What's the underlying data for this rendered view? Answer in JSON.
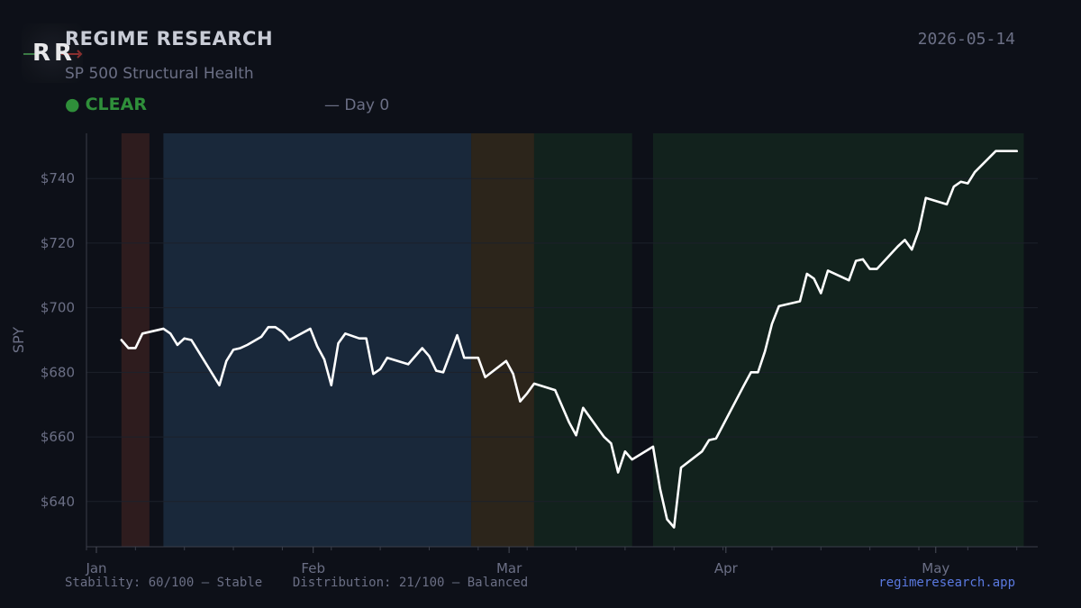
{
  "header": {
    "logo_text": "RR",
    "brand": "REGIME RESEARCH",
    "subtitle": "SP 500 Structural Health",
    "date": "2026-05-14",
    "status_icon": "●",
    "status_label": "CLEAR",
    "status_color": "#2f8f3a",
    "day_text": "— Day 0"
  },
  "footer": {
    "stability": "Stability: 60/100 — Stable",
    "distribution": "Distribution: 21/100 — Balanced",
    "site": "regimeresearch.app"
  },
  "chart_data": {
    "type": "line",
    "title": "",
    "xlabel": "",
    "ylabel": "SPY",
    "ylim": [
      626,
      754
    ],
    "xlim": [
      "2026-01-01",
      "2026-05-17"
    ],
    "yticks": [
      {
        "value": 640,
        "label": "$640"
      },
      {
        "value": 660,
        "label": "$660"
      },
      {
        "value": 680,
        "label": "$680"
      },
      {
        "value": 700,
        "label": "$700"
      },
      {
        "value": 720,
        "label": "$720"
      },
      {
        "value": 740,
        "label": "$740"
      }
    ],
    "xticks": [
      {
        "value": "2026-01-01",
        "label": "Jan"
      },
      {
        "value": "2026-02-01",
        "label": "Feb"
      },
      {
        "value": "2026-03-01",
        "label": "Mar"
      },
      {
        "value": "2026-04-01",
        "label": "Apr"
      },
      {
        "value": "2026-05-01",
        "label": "May"
      }
    ],
    "grid": true,
    "line_color": "#ffffff",
    "regimes": [
      {
        "start": "2026-01-06",
        "end": "2026-01-09",
        "color": "#2e1c1e"
      },
      {
        "start": "2026-01-12",
        "end": "2026-02-24",
        "color": "#19283a"
      },
      {
        "start": "2026-02-25",
        "end": "2026-03-05",
        "color": "#2c251b"
      },
      {
        "start": "2026-03-06",
        "end": "2026-03-19",
        "color": "#12221d"
      },
      {
        "start": "2026-03-23",
        "end": "2026-05-14",
        "color": "#12221d"
      }
    ],
    "series": [
      {
        "name": "",
        "x": [
          "2026-01-06",
          "2026-01-07",
          "2026-01-08",
          "2026-01-09",
          "2026-01-12",
          "2026-01-13",
          "2026-01-14",
          "2026-01-15",
          "2026-01-16",
          "2026-01-20",
          "2026-01-21",
          "2026-01-22",
          "2026-01-23",
          "2026-01-24",
          "2026-01-26",
          "2026-01-27",
          "2026-01-28",
          "2026-01-29",
          "2026-01-30",
          "2026-02-02",
          "2026-02-03",
          "2026-02-04",
          "2026-02-05",
          "2026-02-06",
          "2026-02-07",
          "2026-02-09",
          "2026-02-10",
          "2026-02-11",
          "2026-02-12",
          "2026-02-13",
          "2026-02-16",
          "2026-02-18",
          "2026-02-19",
          "2026-02-20",
          "2026-02-21",
          "2026-02-23",
          "2026-02-24",
          "2026-02-26",
          "2026-02-27",
          "2026-03-02",
          "2026-03-03",
          "2026-03-04",
          "2026-03-05",
          "2026-03-06",
          "2026-03-09",
          "2026-03-11",
          "2026-03-12",
          "2026-03-13",
          "2026-03-16",
          "2026-03-17",
          "2026-03-18",
          "2026-03-19",
          "2026-03-20",
          "2026-03-23",
          "2026-03-24",
          "2026-03-25",
          "2026-03-26",
          "2026-03-27",
          "2026-03-30",
          "2026-03-31",
          "2026-04-01",
          "2026-04-05",
          "2026-04-06",
          "2026-04-07",
          "2026-04-08",
          "2026-04-09",
          "2026-04-10",
          "2026-04-13",
          "2026-04-14",
          "2026-04-15",
          "2026-04-16",
          "2026-04-17",
          "2026-04-20",
          "2026-04-21",
          "2026-04-22",
          "2026-04-23",
          "2026-04-24",
          "2026-04-27",
          "2026-04-28",
          "2026-04-29",
          "2026-04-30",
          "2026-05-01",
          "2026-05-04",
          "2026-05-05",
          "2026-05-06",
          "2026-05-07",
          "2026-05-08",
          "2026-05-11",
          "2026-05-12",
          "2026-05-13",
          "2026-05-14"
        ],
        "y": [
          690,
          687.5,
          687.5,
          692,
          693.5,
          692,
          688.5,
          690.5,
          690,
          676,
          683.5,
          687,
          687.5,
          688.5,
          691,
          694,
          694,
          692.5,
          690,
          693.5,
          688,
          684,
          676,
          689,
          692,
          690.5,
          690.5,
          679.5,
          681,
          684.5,
          682.5,
          687.5,
          685,
          680.5,
          680,
          691.5,
          684.5,
          684.5,
          678.5,
          683.5,
          679.5,
          671,
          673.5,
          676.5,
          674.5,
          664.5,
          660.5,
          669,
          660,
          658,
          649,
          655.5,
          653,
          657,
          644,
          634.5,
          632,
          650.5,
          655.5,
          659,
          659.5,
          676,
          680,
          680,
          686.5,
          695,
          700.5,
          702,
          710.5,
          709,
          704.5,
          711.5,
          708.5,
          714.5,
          715,
          712,
          712,
          719,
          721,
          718,
          724,
          734,
          732,
          737.5,
          739,
          738.5,
          742,
          748.5,
          748.5,
          748.5,
          748.5
        ]
      }
    ]
  }
}
